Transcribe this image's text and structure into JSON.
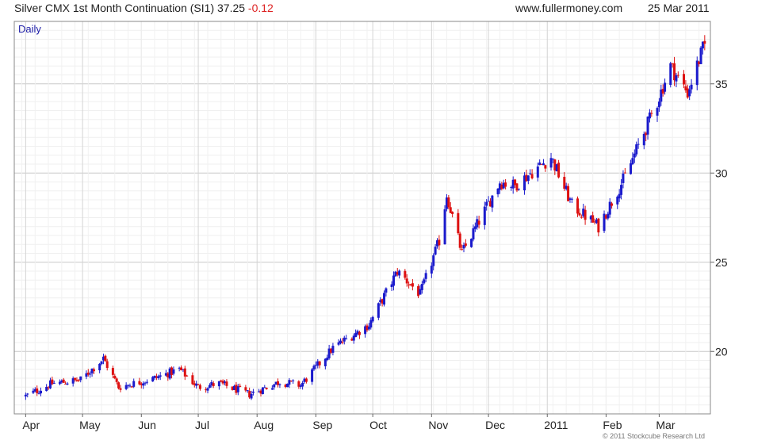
{
  "header": {
    "title": "Silver CMX 1st Month Continuation (SI1) 37.25",
    "change": "-0.12",
    "site": "www.fullermoney.com",
    "date": "25 Mar 2011"
  },
  "footer": {
    "copyright": "© 2011 Stockcube Research Ltd"
  },
  "chart_data": {
    "type": "candlestick",
    "interval_label": "Daily",
    "x_tick_labels": [
      "Apr",
      "May",
      "Jun",
      "Jul",
      "Aug",
      "Sep",
      "Oct",
      "Nov",
      "Dec",
      "2011",
      "Feb",
      "Mar"
    ],
    "y_tick_labels": [
      "20",
      "25",
      "30",
      "35"
    ],
    "y_ticks": [
      20,
      25,
      30,
      35
    ],
    "ylim": [
      16.5,
      38.5
    ],
    "grid": true,
    "colors": {
      "up": "#1a1acc",
      "down": "#dd1111",
      "grid": "#d8d8d8",
      "frame": "#888888"
    },
    "x": [
      "2010-04-01",
      "2010-04-15",
      "2010-04-30",
      "2010-05-12",
      "2010-05-20",
      "2010-06-08",
      "2010-06-21",
      "2010-07-01",
      "2010-07-12",
      "2010-07-28",
      "2010-08-13",
      "2010-08-24",
      "2010-09-10",
      "2010-09-29",
      "2010-10-14",
      "2010-10-26",
      "2010-11-05",
      "2010-11-09",
      "2010-11-17",
      "2010-12-07",
      "2010-12-15",
      "2011-01-03",
      "2011-01-14",
      "2011-01-28",
      "2011-02-11",
      "2011-02-28",
      "2011-03-07",
      "2011-03-16",
      "2011-03-25"
    ],
    "close": [
      17.5,
      18.2,
      18.4,
      19.6,
      18.0,
      18.5,
      19.0,
      18.0,
      18.2,
      17.6,
      18.3,
      18.1,
      20.2,
      21.5,
      24.5,
      23.2,
      26.2,
      28.8,
      25.5,
      29.5,
      29.3,
      30.9,
      28.2,
      27.0,
      29.8,
      34.0,
      36.0,
      34.5,
      37.25
    ]
  }
}
